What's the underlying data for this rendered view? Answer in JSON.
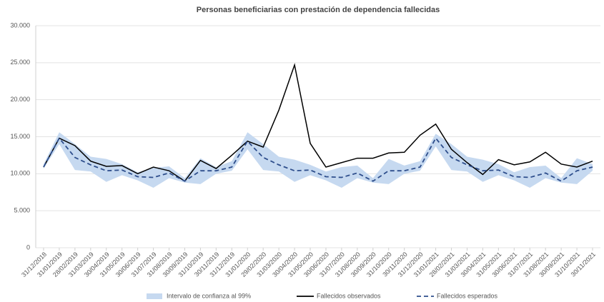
{
  "chart_data": {
    "type": "line",
    "title": "Personas beneficiarias con prestación de dependencia fallecidas",
    "categories": [
      "31/12/2018",
      "31/01/2019",
      "28/02/2019",
      "31/03/2019",
      "30/04/2019",
      "31/05/2019",
      "30/06/2019",
      "31/07/2019",
      "31/08/2019",
      "30/09/2019",
      "31/10/2019",
      "30/11/2019",
      "31/12/2019",
      "31/01/2020",
      "29/02/2020",
      "31/03/2020",
      "30/04/2020",
      "31/05/2020",
      "30/06/2020",
      "31/07/2020",
      "31/08/2020",
      "30/09/2020",
      "31/10/2020",
      "30/11/2020",
      "31/12/2020",
      "31/01/2021",
      "28/02/2021",
      "31/03/2021",
      "30/04/2021",
      "31/05/2021",
      "30/06/2021",
      "31/07/2021",
      "31/08/2021",
      "30/09/2021",
      "31/10/2021",
      "30/11/2021"
    ],
    "series": [
      {
        "name": "Intervalo de confianza al 99%",
        "type": "band",
        "color": "#c6d9f0",
        "upper": [
          11300,
          15600,
          14000,
          12300,
          12000,
          11300,
          10200,
          10800,
          11000,
          9400,
          12100,
          10900,
          11700,
          15600,
          14000,
          12300,
          11900,
          11200,
          10300,
          10900,
          11100,
          9400,
          12000,
          11100,
          11700,
          15400,
          14000,
          12300,
          11900,
          11300,
          10200,
          10900,
          11100,
          9400,
          12100,
          11300
        ],
        "lower": [
          10700,
          14000,
          10500,
          10300,
          8900,
          9800,
          9100,
          8100,
          9400,
          8800,
          8600,
          10000,
          10400,
          13300,
          10500,
          10300,
          8900,
          9800,
          9100,
          8100,
          9400,
          8800,
          8600,
          10000,
          10400,
          13700,
          10500,
          10300,
          8900,
          9800,
          9100,
          8100,
          9400,
          8800,
          8600,
          10400
        ]
      },
      {
        "name": "Fallecidos observados",
        "type": "line",
        "color": "#000000",
        "dashed": false,
        "values": [
          10900,
          14800,
          13800,
          11700,
          11000,
          11100,
          10000,
          10900,
          10400,
          9000,
          11800,
          10700,
          12500,
          14400,
          13600,
          18600,
          24700,
          14100,
          10900,
          11500,
          12100,
          12100,
          12800,
          12900,
          15200,
          16700,
          13300,
          11500,
          9900,
          11900,
          11200,
          11600,
          12900,
          11300,
          10900,
          11700
        ]
      },
      {
        "name": "Fallecidos esperados",
        "type": "line",
        "color": "#2e4e8c",
        "dashed": true,
        "values": [
          10900,
          14800,
          12200,
          11200,
          10400,
          10500,
          9600,
          9500,
          10100,
          9000,
          10400,
          10400,
          10900,
          14400,
          12200,
          11200,
          10400,
          10500,
          9600,
          9500,
          10100,
          9000,
          10400,
          10400,
          10900,
          14800,
          12200,
          11200,
          10400,
          10500,
          9600,
          9500,
          10100,
          9000,
          10400,
          10900
        ]
      }
    ],
    "ylim": [
      0,
      30000
    ],
    "yticks": [
      0,
      {
        "value": 5000,
        "label": "5.000"
      },
      {
        "value": 10000,
        "label": "10.000"
      },
      {
        "value": 15000,
        "label": "15.000"
      },
      {
        "value": 20000,
        "label": "20.000"
      },
      {
        "value": 25000,
        "label": "25.000"
      },
      {
        "value": 30000,
        "label": "30.000"
      }
    ],
    "grid": true,
    "legend": "bottom"
  }
}
